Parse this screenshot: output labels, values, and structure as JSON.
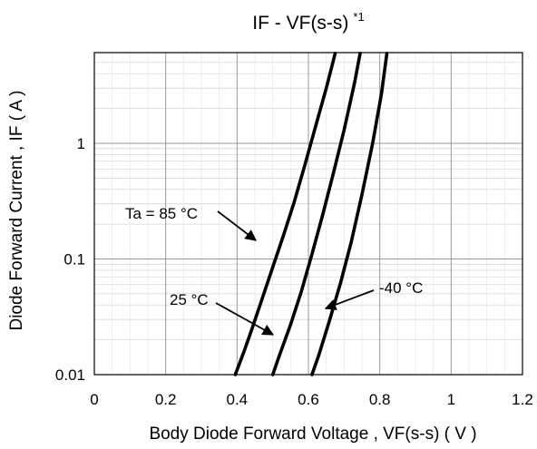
{
  "chart_data": {
    "type": "line",
    "title": "IF - VF(s-s)",
    "title_note": "*1",
    "xlabel": "Body Diode Forward Voltage , VF(s-s)  ( V )",
    "ylabel": "Diode Forward Current , IF ( A )",
    "xlim": [
      0,
      1.2
    ],
    "ylim": [
      0.01,
      6
    ],
    "yscale": "log",
    "grid": true,
    "x_ticks": [
      0,
      0.2,
      0.4,
      0.6,
      0.8,
      1,
      1.2
    ],
    "x_tick_labels": [
      "0",
      "0.2",
      "0.4",
      "0.6",
      "0.8",
      "1",
      "1.2"
    ],
    "y_ticks": [
      0.01,
      0.1,
      1
    ],
    "y_tick_labels": [
      "0.01",
      "0.1",
      "1"
    ],
    "series": [
      {
        "name": "Ta = 85 °C",
        "x": [
          0.395,
          0.42,
          0.44,
          0.47,
          0.5,
          0.53,
          0.56,
          0.59,
          0.62,
          0.65,
          0.675
        ],
        "y": [
          0.01,
          0.016,
          0.024,
          0.045,
          0.085,
          0.16,
          0.31,
          0.65,
          1.4,
          3.0,
          6.0
        ]
      },
      {
        "name": "25 °C",
        "x": [
          0.5,
          0.52,
          0.55,
          0.58,
          0.61,
          0.64,
          0.67,
          0.7,
          0.73,
          0.745
        ],
        "y": [
          0.01,
          0.015,
          0.027,
          0.052,
          0.11,
          0.24,
          0.55,
          1.3,
          3.4,
          6.0
        ]
      },
      {
        "name": "-40 °C",
        "x": [
          0.61,
          0.63,
          0.66,
          0.69,
          0.72,
          0.75,
          0.78,
          0.805,
          0.82
        ],
        "y": [
          0.01,
          0.015,
          0.03,
          0.062,
          0.14,
          0.36,
          1.0,
          2.7,
          6.0
        ]
      }
    ],
    "annotations": [
      {
        "text": "Ta = 85 °C",
        "series": 0
      },
      {
        "text": "25 °C",
        "series": 1
      },
      {
        "text": "-40 °C",
        "series": 2
      }
    ]
  }
}
